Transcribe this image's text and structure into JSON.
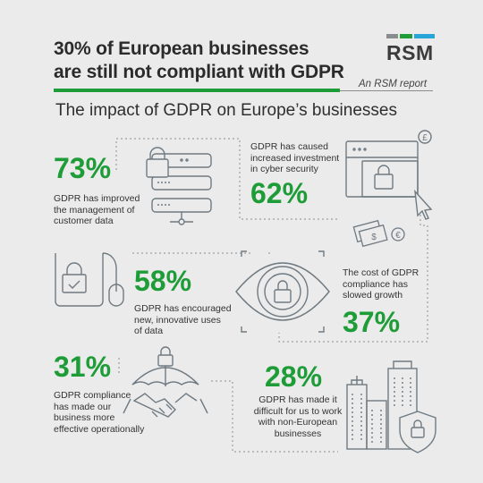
{
  "header": {
    "title_line1": "30% of European businesses",
    "title_line2": "are still not compliant with GDPR",
    "byline": "An RSM report",
    "subtitle": "The impact of GDPR on Europe’s businesses"
  },
  "brand": {
    "name": "RSM",
    "bar_colors": [
      "#8a8c8e",
      "#1e9c37",
      "#2aa5d7"
    ]
  },
  "colors": {
    "accent_green": "#1e9c37",
    "icon_stroke": "#6f7a82",
    "dotted_line": "#8c8c8c",
    "background": "#ebebeb"
  },
  "stats": [
    {
      "value": "73%",
      "text": "GDPR has improved\nthe management of\ncustomer data"
    },
    {
      "value": "62%",
      "text": "GDPR has caused\nincreased investment\nin cyber security"
    },
    {
      "value": "58%",
      "text": "GDPR has encouraged\nnew, innovative uses\nof data"
    },
    {
      "value": "37%",
      "text": "The cost of GDPR\ncompliance has\nslowed growth"
    },
    {
      "value": "31%",
      "text": "GDPR compliance\nhas made our\nbusiness more\neffective operationally"
    },
    {
      "value": "28%",
      "text": "GDPR has made it\ndifficult for us to work\nwith non-European\nbusinesses"
    }
  ],
  "icons": {
    "server": "server-padlock-icon",
    "browser": "browser-padlock-icon",
    "computer": "computer-padlock-icon",
    "eye": "eye-padlock-icon",
    "handshake": "handshake-umbrella-icon",
    "city": "city-shield-icon",
    "pound_symbol": "£",
    "euro_symbol": "€",
    "dollar_symbol": "$"
  }
}
